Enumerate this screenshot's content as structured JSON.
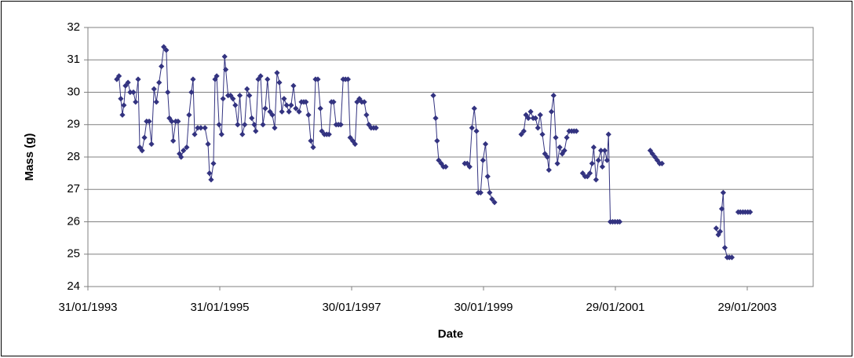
{
  "chart_data": {
    "type": "line",
    "x_label": "Date",
    "y_label": "Mass (g)",
    "color": "#333380",
    "grid": true,
    "xlim": [
      "1993-01-31",
      "2004-01-29"
    ],
    "xticks": [
      {
        "value": "1993-01-31",
        "label": "31/01/1993"
      },
      {
        "value": "1995-01-31",
        "label": "31/01/1995"
      },
      {
        "value": "1997-01-30",
        "label": "30/01/1997"
      },
      {
        "value": "1999-01-30",
        "label": "30/01/1999"
      },
      {
        "value": "2001-01-29",
        "label": "29/01/2001"
      },
      {
        "value": "2003-01-29",
        "label": "29/01/2003"
      }
    ],
    "ylim": [
      24,
      32
    ],
    "yticks": [
      24,
      25,
      26,
      27,
      28,
      29,
      30,
      31,
      32
    ],
    "x": [
      "1993-07-10",
      "1993-07-22",
      "1993-08-01",
      "1993-08-10",
      "1993-08-18",
      "1993-08-27",
      "1993-09-10",
      "1993-09-22",
      "1993-10-10",
      "1993-10-22",
      "1993-11-05",
      "1993-11-14",
      "1993-11-27",
      "1993-12-10",
      "1993-12-22",
      "1994-01-05",
      "1994-01-18",
      "1994-02-01",
      "1994-02-14",
      "1994-03-01",
      "1994-03-14",
      "1994-03-27",
      "1994-04-10",
      "1994-04-18",
      "1994-04-27",
      "1994-05-10",
      "1994-05-18",
      "1994-06-01",
      "1994-06-14",
      "1994-06-22",
      "1994-07-01",
      "1994-07-14",
      "1994-08-01",
      "1994-08-14",
      "1994-08-27",
      "1994-09-05",
      "1994-09-14",
      "1994-10-01",
      "1994-10-18",
      "1994-11-10",
      "1994-11-27",
      "1994-12-05",
      "1994-12-14",
      "1994-12-27",
      "1995-01-05",
      "1995-01-14",
      "1995-01-27",
      "1995-02-10",
      "1995-02-18",
      "1995-02-27",
      "1995-03-05",
      "1995-03-18",
      "1995-04-01",
      "1995-04-14",
      "1995-04-27",
      "1995-05-10",
      "1995-05-22",
      "1995-06-05",
      "1995-06-18",
      "1995-07-01",
      "1995-07-14",
      "1995-07-27",
      "1995-08-10",
      "1995-08-18",
      "1995-09-01",
      "1995-09-14",
      "1995-09-27",
      "1995-10-10",
      "1995-10-22",
      "1995-11-05",
      "1995-11-18",
      "1995-12-01",
      "1995-12-14",
      "1995-12-27",
      "1996-01-10",
      "1996-01-22",
      "1996-02-05",
      "1996-02-18",
      "1996-03-01",
      "1996-03-14",
      "1996-03-27",
      "1996-04-14",
      "1996-04-27",
      "1996-05-10",
      "1996-05-22",
      "1996-06-05",
      "1996-06-18",
      "1996-07-01",
      "1996-07-14",
      "1996-07-27",
      "1996-08-10",
      "1996-08-18",
      "1996-09-01",
      "1996-09-14",
      "1996-09-27",
      "1996-10-10",
      "1996-10-22",
      "1996-11-05",
      "1996-11-18",
      "1996-12-01",
      "1996-12-14",
      "1996-12-27",
      "1997-01-10",
      "1997-01-22",
      "1997-02-05",
      "1997-02-18",
      "1997-03-01",
      "1997-03-14",
      "1997-03-27",
      "1997-04-10",
      "1997-04-22",
      "1997-05-05",
      "1997-05-18",
      "1997-06-01",
      "1997-06-14",
      null,
      "1998-04-27",
      "1998-05-10",
      "1998-05-18",
      "1998-05-27",
      "1998-06-10",
      "1998-06-22",
      "1998-07-05",
      null,
      "1998-10-18",
      "1998-11-01",
      "1998-11-14",
      "1998-11-27",
      "1998-12-10",
      "1998-12-22",
      "1999-01-01",
      "1999-01-14",
      "1999-01-27",
      "1999-02-10",
      "1999-02-22",
      "1999-03-05",
      "1999-03-18",
      "1999-04-01",
      null,
      "1999-08-27",
      "1999-09-10",
      "1999-09-22",
      "1999-10-05",
      "1999-10-18",
      "1999-11-01",
      "1999-11-14",
      "1999-11-27",
      "1999-12-10",
      "1999-12-22",
      "2000-01-05",
      "2000-01-18",
      "2000-01-27",
      "2000-02-10",
      "2000-02-22",
      "2000-03-05",
      "2000-03-14",
      "2000-03-27",
      "2000-04-10",
      "2000-04-22",
      "2000-05-05",
      "2000-05-18",
      "2000-06-01",
      "2000-06-14",
      "2000-06-27",
      null,
      "2000-08-01",
      "2000-08-14",
      "2000-08-27",
      "2000-09-10",
      "2000-09-22",
      "2000-10-01",
      "2000-10-14",
      "2000-10-27",
      "2000-11-10",
      "2000-11-18",
      "2000-12-01",
      "2000-12-14",
      "2000-12-22",
      "2001-01-01",
      "2001-01-14",
      "2001-01-27",
      "2001-02-10",
      "2001-02-22",
      null,
      "2001-08-10",
      "2001-08-22",
      "2001-09-05",
      "2001-09-18",
      "2001-10-01",
      "2001-10-14",
      null,
      "2002-08-10",
      "2002-08-22",
      "2002-09-01",
      "2002-09-10",
      "2002-09-18",
      "2002-09-27",
      "2002-10-10",
      "2002-10-22",
      "2002-11-05",
      null,
      "2002-12-10",
      "2002-12-22",
      "2003-01-05",
      "2003-01-18",
      "2003-02-01",
      "2003-02-14"
    ],
    "values": [
      30.4,
      30.5,
      29.8,
      29.3,
      29.6,
      30.2,
      30.3,
      30.0,
      30.0,
      29.7,
      30.4,
      28.3,
      28.2,
      28.6,
      29.1,
      29.1,
      28.4,
      30.1,
      29.7,
      30.3,
      30.8,
      31.4,
      31.3,
      30.0,
      29.2,
      29.1,
      28.5,
      29.1,
      29.1,
      28.1,
      28.0,
      28.2,
      28.3,
      29.3,
      30.0,
      30.4,
      28.7,
      28.9,
      28.9,
      28.9,
      28.4,
      27.5,
      27.3,
      27.8,
      30.4,
      30.5,
      29.0,
      28.7,
      29.8,
      31.1,
      30.7,
      29.9,
      29.9,
      29.8,
      29.6,
      29.0,
      29.9,
      28.7,
      29.0,
      30.1,
      29.9,
      29.2,
      29.0,
      28.8,
      30.4,
      30.5,
      29.0,
      29.5,
      30.4,
      29.4,
      29.3,
      28.9,
      30.6,
      30.3,
      29.4,
      29.8,
      29.6,
      29.4,
      29.6,
      30.2,
      29.5,
      29.4,
      29.7,
      29.7,
      29.7,
      29.3,
      28.5,
      28.3,
      30.4,
      30.4,
      29.5,
      28.8,
      28.7,
      28.7,
      28.7,
      29.7,
      29.7,
      29.0,
      29.0,
      29.0,
      30.4,
      30.4,
      30.4,
      28.6,
      28.5,
      28.4,
      29.7,
      29.8,
      29.7,
      29.7,
      29.3,
      29.0,
      28.9,
      28.9,
      28.9,
      null,
      29.9,
      29.2,
      28.5,
      27.9,
      27.8,
      27.7,
      27.7,
      null,
      27.8,
      27.8,
      27.7,
      28.9,
      29.5,
      28.8,
      26.9,
      26.9,
      27.9,
      28.4,
      27.4,
      26.9,
      26.7,
      26.6,
      null,
      28.7,
      28.8,
      29.3,
      29.2,
      29.4,
      29.2,
      29.2,
      28.9,
      29.3,
      28.7,
      28.1,
      28.0,
      27.6,
      29.4,
      29.9,
      28.6,
      27.8,
      28.3,
      28.1,
      28.2,
      28.6,
      28.8,
      28.8,
      28.8,
      28.8,
      null,
      27.5,
      27.4,
      27.4,
      27.5,
      27.8,
      28.3,
      27.3,
      27.9,
      28.2,
      27.7,
      28.2,
      27.9,
      28.7,
      26.0,
      26.0,
      26.0,
      26.0,
      26.0,
      null,
      28.2,
      28.1,
      28.0,
      27.9,
      27.8,
      27.8,
      null,
      25.8,
      25.6,
      25.7,
      26.4,
      26.9,
      25.2,
      24.9,
      24.9,
      24.9,
      null,
      26.3,
      26.3,
      26.3,
      26.3,
      26.3,
      26.3
    ]
  }
}
